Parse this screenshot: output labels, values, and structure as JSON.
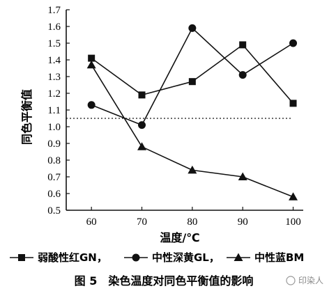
{
  "chart_data": {
    "type": "line",
    "x": [
      60,
      70,
      80,
      90,
      100
    ],
    "xlabel": "温度/℃",
    "ylabel": "同色平衡值",
    "xlim": [
      55,
      102
    ],
    "ylim": [
      0.5,
      1.7
    ],
    "xticks": [
      "60",
      "70",
      "80",
      "90",
      "100"
    ],
    "yticks": [
      "0.5",
      "0.6",
      "0.7",
      "0.8",
      "0.9",
      "1.0",
      "1.1",
      "1.2",
      "1.3",
      "1.4",
      "1.5",
      "1.6",
      "1.7"
    ],
    "reference_line": {
      "y": 1.05,
      "style": "dotted"
    },
    "grid": false,
    "legend_position": "bottom",
    "series": [
      {
        "name": "弱酸性红GN，",
        "marker": "square",
        "values": [
          1.41,
          1.19,
          1.27,
          1.49,
          1.14
        ]
      },
      {
        "name": "中性深黄GL，",
        "marker": "circle",
        "values": [
          1.13,
          1.01,
          1.59,
          1.31,
          1.5
        ]
      },
      {
        "name": "中性蓝BM",
        "marker": "triangle",
        "values": [
          1.37,
          0.88,
          0.74,
          0.7,
          0.58
        ]
      }
    ],
    "caption": "图 5　染色温度对同色平衡值的影响",
    "watermark": "印染人",
    "line_color": "#111111"
  }
}
